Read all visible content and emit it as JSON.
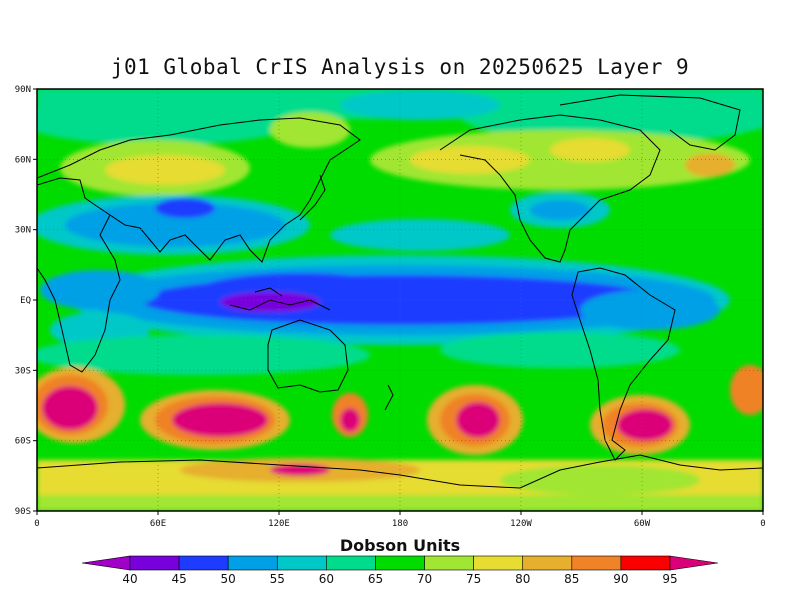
{
  "title": "j01 Global CrIS Analysis on 20250625 Layer 9",
  "map": {
    "projection": "cylindrical equidistant",
    "lon_range": [
      0,
      360
    ],
    "lat_range": [
      -90,
      90
    ],
    "lat_ticks": [
      {
        "value": 90,
        "label": "90N"
      },
      {
        "value": 60,
        "label": "60N"
      },
      {
        "value": 30,
        "label": "30N"
      },
      {
        "value": 0,
        "label": "EQ"
      },
      {
        "value": -30,
        "label": "30S"
      },
      {
        "value": -60,
        "label": "60S"
      },
      {
        "value": -90,
        "label": "90S"
      }
    ],
    "lon_ticks": [
      {
        "value": 0,
        "label": "0"
      },
      {
        "value": 60,
        "label": "60E"
      },
      {
        "value": 120,
        "label": "120E"
      },
      {
        "value": 180,
        "label": "180"
      },
      {
        "value": 240,
        "label": "120W"
      },
      {
        "value": 300,
        "label": "60W"
      },
      {
        "value": 360,
        "label": "0"
      }
    ],
    "grid": true
  },
  "colorbar": {
    "label": "Dobson Units",
    "levels": [
      "40",
      "45",
      "50",
      "55",
      "60",
      "65",
      "70",
      "75",
      "80",
      "85",
      "90",
      "95"
    ],
    "colors": [
      "#a000c8",
      "#7800dc",
      "#1e3cff",
      "#00a0e6",
      "#00c8c8",
      "#00dc8c",
      "#00dc00",
      "#a0e632",
      "#e6dc32",
      "#e6af2d",
      "#f08228",
      "#fa0000",
      "#dc0078"
    ]
  }
}
